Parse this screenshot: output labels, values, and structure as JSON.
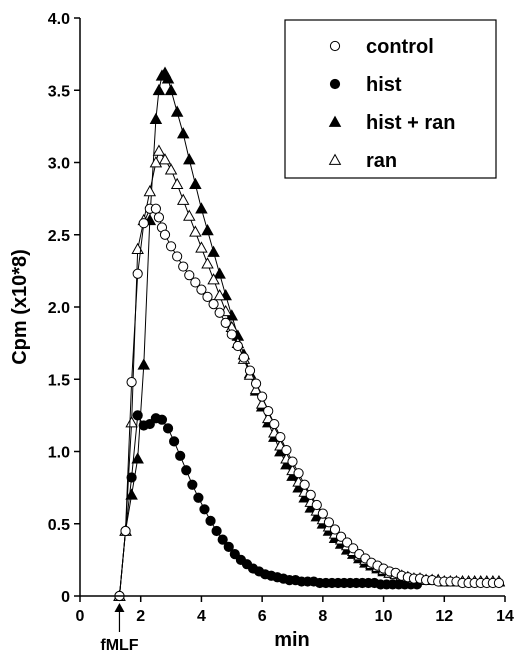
{
  "chart_data": {
    "type": "line",
    "xlabel": "min",
    "ylabel": "Cpm  (x10*8)",
    "xlim": [
      0,
      14
    ],
    "ylim": [
      0,
      4
    ],
    "xticks": [
      "0",
      "2",
      "4",
      "6",
      "8",
      "10",
      "12",
      "14"
    ],
    "yticks": [
      "0",
      "0.5",
      "1.0",
      "1.5",
      "2.0",
      "2.5",
      "3.0",
      "3.5",
      "4.0"
    ],
    "grid": false,
    "legend_position": "top-right",
    "annotation": {
      "label": "fMLF",
      "x": 1.3
    },
    "series": [
      {
        "name": "control",
        "marker": "open-circle",
        "x": [
          1.3,
          1.5,
          1.7,
          1.9,
          2.1,
          2.3,
          2.5,
          2.6,
          2.7,
          2.8,
          3.0,
          3.2,
          3.4,
          3.6,
          3.8,
          4.0,
          4.2,
          4.4,
          4.6,
          4.8,
          5.0,
          5.2,
          5.4,
          5.6,
          5.8,
          6.0,
          6.2,
          6.4,
          6.6,
          6.8,
          7.0,
          7.2,
          7.4,
          7.6,
          7.8,
          8.0,
          8.2,
          8.4,
          8.6,
          8.8,
          9.0,
          9.2,
          9.4,
          9.6,
          9.8,
          10.0,
          10.2,
          10.4,
          10.6,
          10.8,
          11.0,
          11.2,
          11.4,
          11.6,
          11.8,
          12.0,
          12.2,
          12.4,
          12.6,
          12.8,
          13.0,
          13.2,
          13.4,
          13.6,
          13.8
        ],
        "y": [
          0.0,
          0.45,
          1.48,
          2.23,
          2.58,
          2.68,
          2.68,
          2.62,
          2.55,
          2.5,
          2.42,
          2.35,
          2.28,
          2.22,
          2.17,
          2.12,
          2.07,
          2.02,
          1.96,
          1.89,
          1.81,
          1.73,
          1.65,
          1.56,
          1.47,
          1.38,
          1.28,
          1.19,
          1.1,
          1.01,
          0.93,
          0.85,
          0.77,
          0.7,
          0.63,
          0.57,
          0.51,
          0.46,
          0.41,
          0.37,
          0.33,
          0.29,
          0.26,
          0.23,
          0.21,
          0.19,
          0.17,
          0.16,
          0.14,
          0.13,
          0.12,
          0.12,
          0.11,
          0.11,
          0.1,
          0.1,
          0.1,
          0.1,
          0.09,
          0.09,
          0.09,
          0.09,
          0.09,
          0.09,
          0.09
        ]
      },
      {
        "name": "hist",
        "marker": "filled-circle",
        "x": [
          1.3,
          1.5,
          1.7,
          1.9,
          2.1,
          2.3,
          2.5,
          2.7,
          2.9,
          3.1,
          3.3,
          3.5,
          3.7,
          3.9,
          4.1,
          4.3,
          4.5,
          4.7,
          4.9,
          5.1,
          5.3,
          5.5,
          5.7,
          5.9,
          6.1,
          6.3,
          6.5,
          6.7,
          6.9,
          7.1,
          7.3,
          7.5,
          7.7,
          7.9,
          8.1,
          8.3,
          8.5,
          8.7,
          8.9,
          9.1,
          9.3,
          9.5,
          9.7,
          9.9,
          10.1,
          10.3,
          10.5,
          10.7,
          10.9,
          11.1
        ],
        "y": [
          0.0,
          0.45,
          0.82,
          1.25,
          1.18,
          1.19,
          1.23,
          1.22,
          1.16,
          1.07,
          0.97,
          0.87,
          0.77,
          0.68,
          0.6,
          0.52,
          0.45,
          0.39,
          0.34,
          0.29,
          0.25,
          0.22,
          0.19,
          0.17,
          0.15,
          0.14,
          0.13,
          0.12,
          0.11,
          0.11,
          0.1,
          0.1,
          0.1,
          0.09,
          0.09,
          0.09,
          0.09,
          0.09,
          0.09,
          0.09,
          0.09,
          0.09,
          0.09,
          0.08,
          0.08,
          0.08,
          0.08,
          0.08,
          0.08,
          0.08
        ]
      },
      {
        "name": "hist + ran",
        "marker": "filled-triangle",
        "x": [
          1.3,
          1.5,
          1.7,
          1.9,
          2.1,
          2.3,
          2.5,
          2.6,
          2.7,
          2.8,
          2.9,
          3.0,
          3.2,
          3.4,
          3.6,
          3.8,
          4.0,
          4.2,
          4.4,
          4.6,
          4.8,
          5.0,
          5.2,
          5.4,
          5.6,
          5.8,
          6.0,
          6.2,
          6.4,
          6.6,
          6.8,
          7.0,
          7.2,
          7.4,
          7.6,
          7.8,
          8.0,
          8.2,
          8.4,
          8.6,
          8.8,
          9.0,
          9.2,
          9.4,
          9.6,
          9.8,
          10.0,
          10.2,
          10.4,
          10.6,
          10.8,
          11.0,
          11.2,
          11.4,
          11.6,
          11.8,
          12.0,
          12.2,
          12.4,
          12.6,
          12.8,
          13.0,
          13.2,
          13.4,
          13.6,
          13.8
        ],
        "y": [
          0.0,
          0.45,
          0.7,
          0.95,
          1.6,
          2.6,
          3.3,
          3.5,
          3.6,
          3.62,
          3.58,
          3.5,
          3.35,
          3.2,
          3.02,
          2.85,
          2.68,
          2.53,
          2.38,
          2.23,
          2.08,
          1.94,
          1.8,
          1.67,
          1.54,
          1.42,
          1.31,
          1.2,
          1.1,
          1.0,
          0.91,
          0.83,
          0.75,
          0.68,
          0.61,
          0.55,
          0.5,
          0.45,
          0.4,
          0.36,
          0.32,
          0.29,
          0.26,
          0.23,
          0.21,
          0.19,
          0.17,
          0.16,
          0.15,
          0.14,
          0.13,
          0.12,
          0.12,
          0.11,
          0.11,
          0.11,
          0.1,
          0.1,
          0.1,
          0.1,
          0.1,
          0.1,
          0.1,
          0.1,
          0.1,
          0.1
        ]
      },
      {
        "name": "ran",
        "marker": "open-triangle",
        "x": [
          1.3,
          1.5,
          1.7,
          1.9,
          2.1,
          2.3,
          2.5,
          2.6,
          2.8,
          3.0,
          3.2,
          3.4,
          3.6,
          3.8,
          4.0,
          4.2,
          4.4,
          4.6,
          4.8,
          5.0,
          5.2,
          5.4,
          5.6,
          5.8,
          6.0,
          6.2,
          6.4,
          6.6,
          6.8,
          7.0,
          7.2,
          7.4,
          7.6,
          7.8,
          8.0,
          8.2,
          8.4,
          8.6,
          8.8,
          9.0,
          9.2,
          9.4,
          9.6,
          9.8,
          10.0,
          10.2,
          10.4,
          10.6,
          10.8,
          11.0,
          11.2,
          11.4,
          11.6,
          11.8,
          12.0,
          12.2,
          12.4,
          12.6,
          12.8,
          13.0,
          13.2,
          13.4,
          13.6,
          13.8
        ],
        "y": [
          0.0,
          0.45,
          1.2,
          2.4,
          2.6,
          2.8,
          3.0,
          3.08,
          3.02,
          2.95,
          2.85,
          2.74,
          2.63,
          2.52,
          2.41,
          2.3,
          2.19,
          2.08,
          1.97,
          1.86,
          1.75,
          1.64,
          1.53,
          1.43,
          1.33,
          1.23,
          1.13,
          1.04,
          0.95,
          0.87,
          0.79,
          0.72,
          0.65,
          0.59,
          0.53,
          0.48,
          0.43,
          0.39,
          0.35,
          0.31,
          0.28,
          0.25,
          0.22,
          0.2,
          0.18,
          0.16,
          0.15,
          0.14,
          0.13,
          0.12,
          0.12,
          0.11,
          0.11,
          0.11,
          0.1,
          0.1,
          0.1,
          0.1,
          0.1,
          0.1,
          0.1,
          0.1,
          0.1,
          0.1
        ]
      }
    ]
  }
}
